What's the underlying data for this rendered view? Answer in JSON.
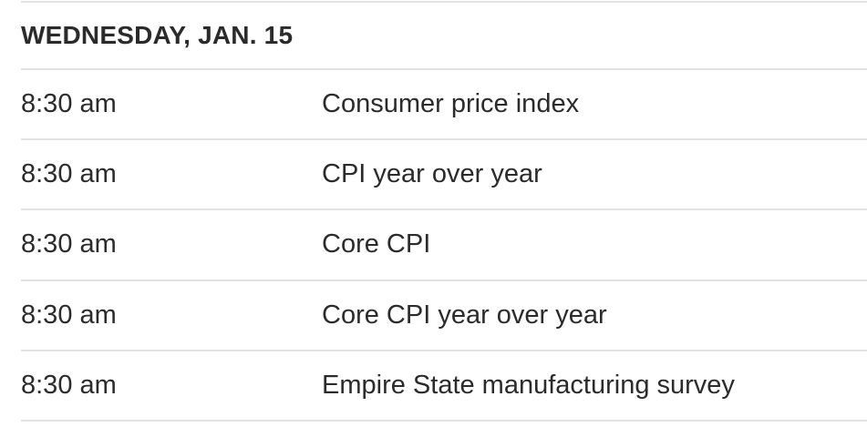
{
  "colors": {
    "text": "#2b2b2b",
    "divider": "#e2e2e2",
    "background": "#ffffff"
  },
  "calendar": {
    "day_header": "WEDNESDAY, JAN. 15",
    "rows": [
      {
        "time": "8:30 am",
        "report": "Consumer price index"
      },
      {
        "time": "8:30 am",
        "report": "CPI year over year"
      },
      {
        "time": "8:30 am",
        "report": "Core CPI"
      },
      {
        "time": "8:30 am",
        "report": "Core CPI year over year"
      },
      {
        "time": "8:30 am",
        "report": "Empire State manufacturing survey"
      }
    ]
  }
}
